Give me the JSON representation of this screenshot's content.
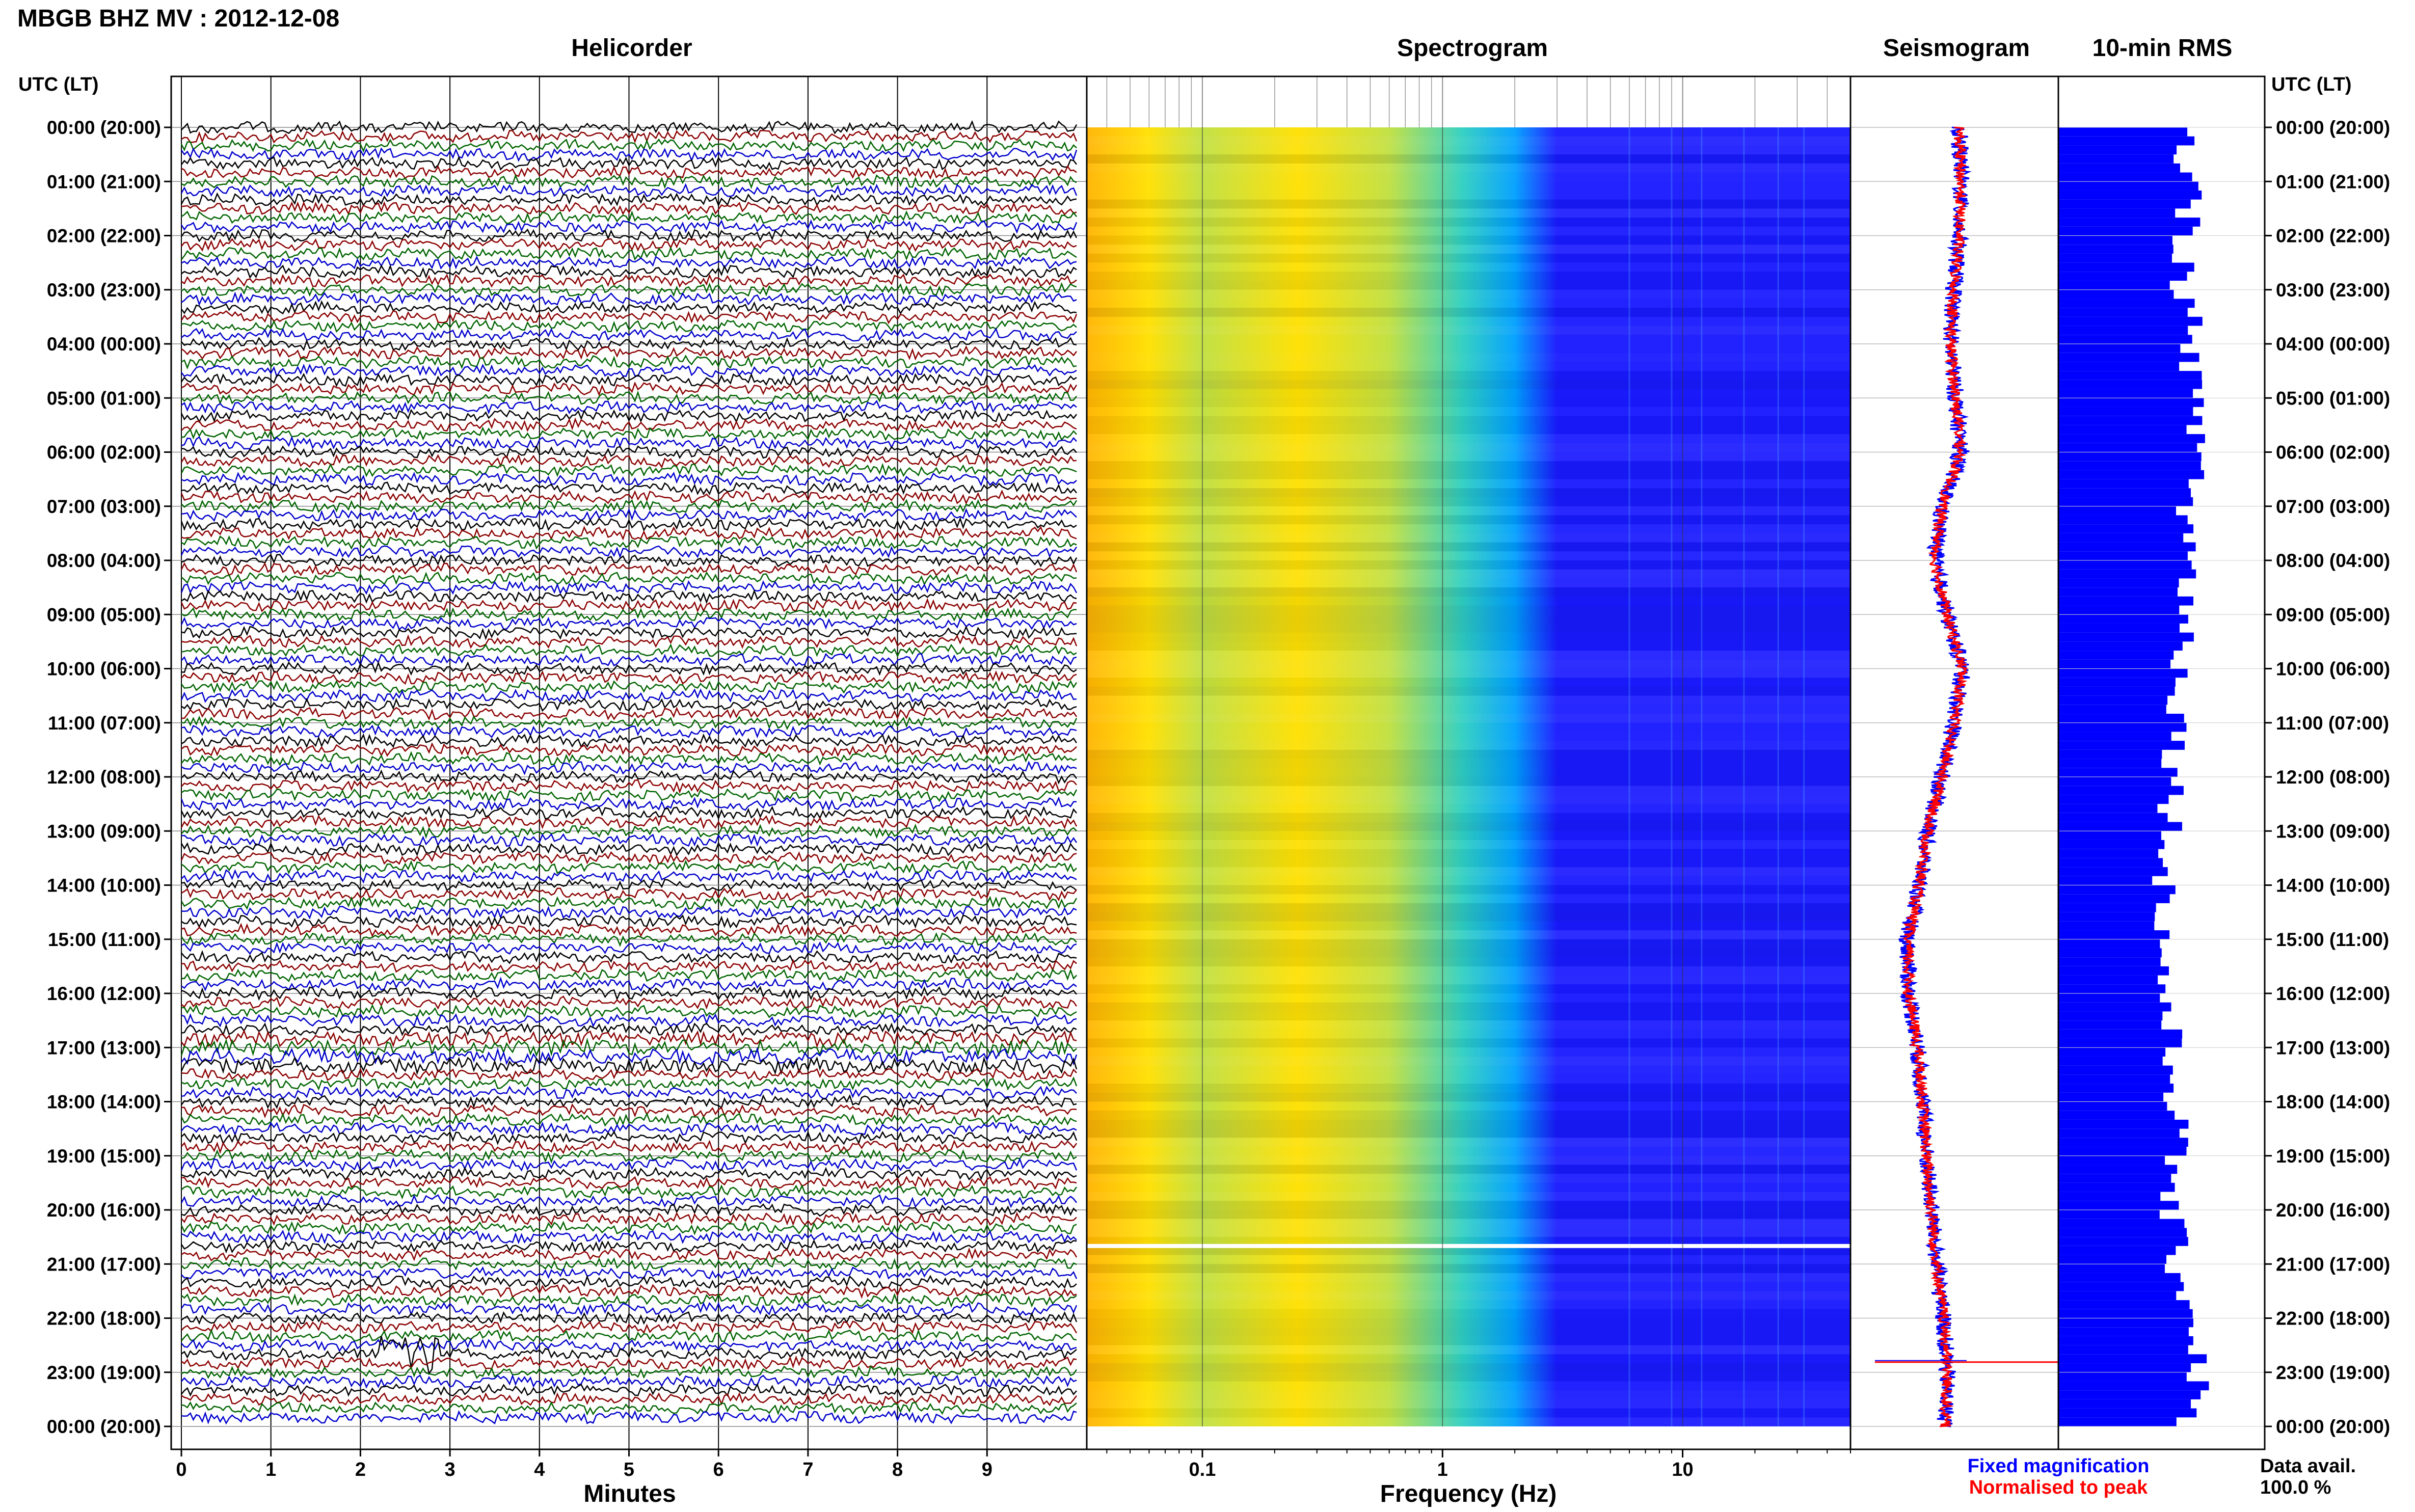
{
  "header": {
    "title": "MBGB BHZ MV : 2012-12-08"
  },
  "panels": {
    "helicorder": "Helicorder",
    "spectrogram": "Spectrogram",
    "seismogram": "Seismogram",
    "rms": "10-min RMS"
  },
  "axis": {
    "left_header": "UTC (LT)",
    "right_header": "UTC (LT)",
    "time_ticks": [
      "00:00 (20:00)",
      "01:00 (21:00)",
      "02:00 (22:00)",
      "03:00 (23:00)",
      "04:00 (00:00)",
      "05:00 (01:00)",
      "06:00 (02:00)",
      "07:00 (03:00)",
      "08:00 (04:00)",
      "09:00 (05:00)",
      "10:00 (06:00)",
      "11:00 (07:00)",
      "12:00 (08:00)",
      "13:00 (09:00)",
      "14:00 (10:00)",
      "15:00 (11:00)",
      "16:00 (12:00)",
      "17:00 (13:00)",
      "18:00 (14:00)",
      "19:00 (15:00)",
      "20:00 (16:00)",
      "21:00 (17:00)",
      "22:00 (18:00)",
      "23:00 (19:00)",
      "00:00 (20:00)"
    ],
    "minutes_label": "Minutes",
    "minute_ticks": [
      "0",
      "1",
      "2",
      "3",
      "4",
      "5",
      "6",
      "7",
      "8",
      "9"
    ],
    "frequency_label": "Frequency (Hz)",
    "frequency_ticks": [
      "0.1",
      "1",
      "10"
    ]
  },
  "legend": {
    "fixed": "Fixed magnification",
    "normalised": "Normalised to peak",
    "fixed_color": "#0000ff",
    "normalised_color": "#ff0000"
  },
  "data_avail": {
    "label": "Data avail.",
    "value": "100.0 %"
  },
  "colors": {
    "trace_cycle": [
      "#000000",
      "#8b0000",
      "#006400",
      "#0000cd"
    ],
    "rms_bar": "#0000ff",
    "spectrogram_ramp": [
      "#1a1aff",
      "#00a0ff",
      "#30d0c0",
      "#c0e040",
      "#ffe000",
      "#ffb400"
    ]
  },
  "chart_data": [
    {
      "type": "line",
      "name": "helicorder",
      "x_unit": "Minutes",
      "xlim": [
        0,
        10
      ],
      "rows": 144,
      "row_minutes": 10,
      "events": [
        {
          "time_utc": "22:40",
          "minute": [
            2.2,
            2.9
          ]
        }
      ]
    },
    {
      "type": "heatmap",
      "name": "spectrogram",
      "xscale": "log",
      "xlim": [
        0.033,
        50
      ],
      "xlabel": "Frequency (Hz)",
      "data_gap_utc": "20:40",
      "peak_energy_band_hz": [
        0.03,
        0.06
      ],
      "noise_floor_from_hz": 2
    },
    {
      "type": "line",
      "name": "seismogram",
      "series": [
        {
          "name": "Fixed magnification",
          "color": "#0000ff"
        },
        {
          "name": "Normalised to peak",
          "color": "#ff0000"
        }
      ],
      "hourly_offset": [
        0.62,
        0.64,
        0.62,
        0.56,
        0.52,
        0.58,
        0.64,
        0.42,
        0.34,
        0.48,
        0.66,
        0.56,
        0.42,
        0.26,
        0.16,
        0.02,
        0.04,
        0.14,
        0.2,
        0.24,
        0.3,
        0.36,
        0.44,
        0.48,
        0.46
      ],
      "spike_utc": "23:00"
    },
    {
      "type": "bar",
      "name": "10-min RMS",
      "hourly_level": [
        0.6,
        0.64,
        0.62,
        0.6,
        0.66,
        0.64,
        0.7,
        0.62,
        0.64,
        0.62,
        0.6,
        0.58,
        0.56,
        0.54,
        0.52,
        0.5,
        0.52,
        0.54,
        0.58,
        0.56,
        0.54,
        0.58,
        0.66,
        0.68,
        0.62
      ]
    }
  ]
}
